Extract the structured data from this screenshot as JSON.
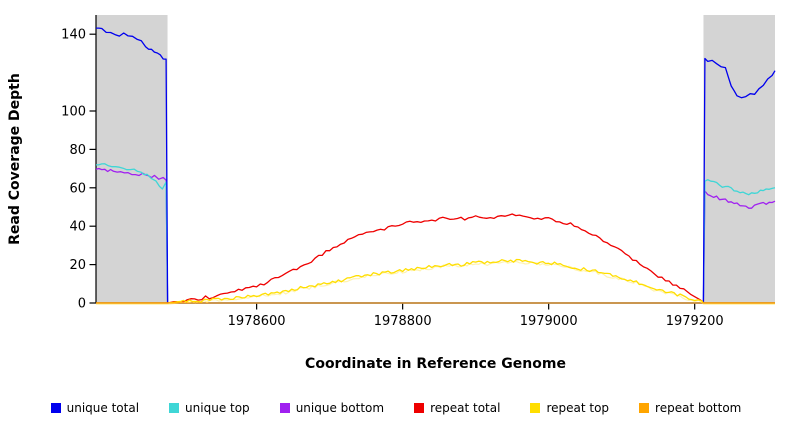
{
  "chart_data": {
    "type": "line",
    "title": "",
    "xlabel": "Coordinate in Reference Genome",
    "ylabel": "Read Coverage Depth",
    "xlim": [
      1978380,
      1979310
    ],
    "ylim": [
      0,
      150
    ],
    "grid": false,
    "legend_position": "bottom",
    "background_color": "#ffffff",
    "axis_color": "#000000",
    "xticks": [
      1978600,
      1978800,
      1979000,
      1979200
    ],
    "xtick_labels": [
      "1978600",
      "1978800",
      "1979000",
      "1979200"
    ],
    "yticks": [
      0,
      20,
      40,
      60,
      80,
      100,
      140
    ],
    "ytick_labels": [
      "0",
      "20",
      "40",
      "60",
      "80",
      "100",
      "140"
    ],
    "shaded_regions": [
      {
        "x0": 1978380,
        "x1": 1978478,
        "color": "#d4d4d4"
      },
      {
        "x0": 1979212,
        "x1": 1979310,
        "color": "#d4d4d4"
      }
    ],
    "draw_order": [
      2,
      1,
      0,
      3,
      4,
      5
    ],
    "series": [
      {
        "name": "unique total",
        "color": "#0000ee",
        "noise": 1.2,
        "points": [
          [
            1978380,
            143
          ],
          [
            1978388,
            144
          ],
          [
            1978394,
            142
          ],
          [
            1978400,
            142
          ],
          [
            1978406,
            141
          ],
          [
            1978412,
            140
          ],
          [
            1978418,
            141
          ],
          [
            1978424,
            139
          ],
          [
            1978430,
            138
          ],
          [
            1978436,
            137
          ],
          [
            1978442,
            136
          ],
          [
            1978448,
            134
          ],
          [
            1978452,
            133
          ],
          [
            1978456,
            132
          ],
          [
            1978460,
            131
          ],
          [
            1978464,
            130
          ],
          [
            1978468,
            129
          ],
          [
            1978472,
            128
          ],
          [
            1978476,
            127
          ],
          [
            1978478,
            0
          ],
          [
            1979212,
            0
          ],
          [
            1979214,
            127
          ],
          [
            1979218,
            126
          ],
          [
            1979224,
            126
          ],
          [
            1979230,
            125
          ],
          [
            1979236,
            124
          ],
          [
            1979242,
            122
          ],
          [
            1979246,
            118
          ],
          [
            1979250,
            114
          ],
          [
            1979254,
            111
          ],
          [
            1979258,
            109
          ],
          [
            1979264,
            108
          ],
          [
            1979270,
            108
          ],
          [
            1979276,
            108
          ],
          [
            1979282,
            109
          ],
          [
            1979288,
            111
          ],
          [
            1979294,
            114
          ],
          [
            1979300,
            117
          ],
          [
            1979306,
            119
          ],
          [
            1979310,
            121
          ]
        ]
      },
      {
        "name": "unique top",
        "color": "#3fd6d6",
        "noise": 0.8,
        "points": [
          [
            1978380,
            72
          ],
          [
            1978392,
            72
          ],
          [
            1978402,
            71
          ],
          [
            1978412,
            70
          ],
          [
            1978422,
            70
          ],
          [
            1978432,
            69
          ],
          [
            1978442,
            68
          ],
          [
            1978450,
            67
          ],
          [
            1978456,
            65
          ],
          [
            1978462,
            63
          ],
          [
            1978467,
            61
          ],
          [
            1978471,
            60
          ],
          [
            1978476,
            63
          ],
          [
            1978478,
            0
          ],
          [
            1979212,
            0
          ],
          [
            1979214,
            64
          ],
          [
            1979222,
            63
          ],
          [
            1979230,
            62
          ],
          [
            1979238,
            61
          ],
          [
            1979246,
            60
          ],
          [
            1979254,
            59
          ],
          [
            1979262,
            58
          ],
          [
            1979270,
            57
          ],
          [
            1979278,
            57
          ],
          [
            1979286,
            58
          ],
          [
            1979294,
            59
          ],
          [
            1979302,
            60
          ],
          [
            1979310,
            60
          ]
        ]
      },
      {
        "name": "unique bottom",
        "color": "#a020f0",
        "noise": 0.7,
        "points": [
          [
            1978380,
            70
          ],
          [
            1978392,
            69
          ],
          [
            1978404,
            69
          ],
          [
            1978414,
            68
          ],
          [
            1978424,
            68
          ],
          [
            1978434,
            67
          ],
          [
            1978444,
            67
          ],
          [
            1978452,
            66
          ],
          [
            1978460,
            66
          ],
          [
            1978466,
            65
          ],
          [
            1978472,
            65
          ],
          [
            1978476,
            64
          ],
          [
            1978478,
            0
          ],
          [
            1979212,
            0
          ],
          [
            1979214,
            58
          ],
          [
            1979222,
            56
          ],
          [
            1979230,
            55
          ],
          [
            1979238,
            54
          ],
          [
            1979246,
            53
          ],
          [
            1979254,
            52
          ],
          [
            1979262,
            51
          ],
          [
            1979270,
            50
          ],
          [
            1979278,
            50
          ],
          [
            1979286,
            51
          ],
          [
            1979294,
            52
          ],
          [
            1979302,
            52
          ],
          [
            1979310,
            53
          ]
        ]
      },
      {
        "name": "repeat total",
        "color": "#ee0000",
        "noise": 0.8,
        "points": [
          [
            1978380,
            0
          ],
          [
            1978478,
            0
          ],
          [
            1978490,
            1
          ],
          [
            1978500,
            1
          ],
          [
            1978510,
            2
          ],
          [
            1978520,
            2
          ],
          [
            1978530,
            3
          ],
          [
            1978540,
            3
          ],
          [
            1978550,
            4
          ],
          [
            1978560,
            5
          ],
          [
            1978570,
            6
          ],
          [
            1978580,
            7
          ],
          [
            1978590,
            8
          ],
          [
            1978600,
            9
          ],
          [
            1978610,
            10
          ],
          [
            1978620,
            12
          ],
          [
            1978630,
            13
          ],
          [
            1978640,
            15
          ],
          [
            1978650,
            17
          ],
          [
            1978660,
            19
          ],
          [
            1978670,
            21
          ],
          [
            1978680,
            23
          ],
          [
            1978690,
            25
          ],
          [
            1978700,
            28
          ],
          [
            1978710,
            30
          ],
          [
            1978720,
            32
          ],
          [
            1978730,
            34
          ],
          [
            1978740,
            35
          ],
          [
            1978750,
            36
          ],
          [
            1978760,
            37
          ],
          [
            1978770,
            38
          ],
          [
            1978780,
            39
          ],
          [
            1978790,
            40
          ],
          [
            1978800,
            41
          ],
          [
            1978810,
            42
          ],
          [
            1978820,
            42
          ],
          [
            1978830,
            43
          ],
          [
            1978840,
            43
          ],
          [
            1978850,
            44
          ],
          [
            1978860,
            44
          ],
          [
            1978870,
            43
          ],
          [
            1978880,
            44
          ],
          [
            1978890,
            44
          ],
          [
            1978900,
            45
          ],
          [
            1978910,
            44
          ],
          [
            1978920,
            44
          ],
          [
            1978930,
            45
          ],
          [
            1978940,
            45
          ],
          [
            1978950,
            46
          ],
          [
            1978960,
            45
          ],
          [
            1978970,
            45
          ],
          [
            1978980,
            44
          ],
          [
            1978990,
            44
          ],
          [
            1979000,
            44
          ],
          [
            1979010,
            43
          ],
          [
            1979020,
            42
          ],
          [
            1979030,
            41
          ],
          [
            1979040,
            39
          ],
          [
            1979050,
            38
          ],
          [
            1979060,
            36
          ],
          [
            1979070,
            34
          ],
          [
            1979080,
            31
          ],
          [
            1979090,
            29
          ],
          [
            1979100,
            27
          ],
          [
            1979110,
            24
          ],
          [
            1979120,
            22
          ],
          [
            1979130,
            19
          ],
          [
            1979140,
            17
          ],
          [
            1979150,
            14
          ],
          [
            1979160,
            12
          ],
          [
            1979170,
            10
          ],
          [
            1979180,
            8
          ],
          [
            1979190,
            6
          ],
          [
            1979200,
            4
          ],
          [
            1979206,
            2
          ],
          [
            1979210,
            1
          ],
          [
            1979212,
            0
          ],
          [
            1979310,
            0
          ]
        ]
      },
      {
        "name": "repeat top",
        "color": "#ffde00",
        "echo_color": "#fff3b0",
        "noise": 0.8,
        "points": [
          [
            1978380,
            0
          ],
          [
            1978478,
            0
          ],
          [
            1978500,
            1
          ],
          [
            1978520,
            1
          ],
          [
            1978540,
            2
          ],
          [
            1978560,
            2
          ],
          [
            1978580,
            3
          ],
          [
            1978600,
            4
          ],
          [
            1978620,
            5
          ],
          [
            1978640,
            6
          ],
          [
            1978660,
            8
          ],
          [
            1978680,
            9
          ],
          [
            1978700,
            11
          ],
          [
            1978720,
            12
          ],
          [
            1978740,
            14
          ],
          [
            1978760,
            15
          ],
          [
            1978780,
            16
          ],
          [
            1978800,
            17
          ],
          [
            1978820,
            18
          ],
          [
            1978840,
            19
          ],
          [
            1978860,
            20
          ],
          [
            1978880,
            20
          ],
          [
            1978900,
            21
          ],
          [
            1978920,
            21
          ],
          [
            1978940,
            22
          ],
          [
            1978960,
            22
          ],
          [
            1978980,
            21
          ],
          [
            1979000,
            21
          ],
          [
            1979020,
            20
          ],
          [
            1979040,
            18
          ],
          [
            1979060,
            17
          ],
          [
            1979080,
            15
          ],
          [
            1979100,
            13
          ],
          [
            1979120,
            11
          ],
          [
            1979140,
            8
          ],
          [
            1979160,
            6
          ],
          [
            1979180,
            4
          ],
          [
            1979200,
            2
          ],
          [
            1979210,
            1
          ],
          [
            1979212,
            0
          ],
          [
            1979310,
            0
          ]
        ]
      },
      {
        "name": "repeat bottom",
        "color": "#ffa500",
        "noise": 0,
        "points": [
          [
            1978380,
            0
          ],
          [
            1979310,
            0
          ]
        ]
      }
    ]
  }
}
